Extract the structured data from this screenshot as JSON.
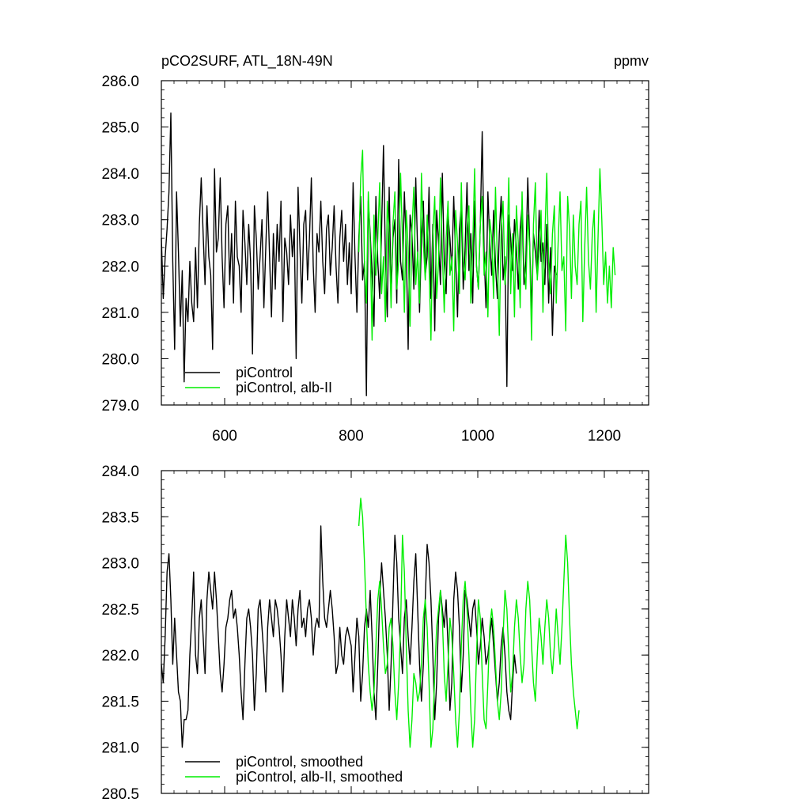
{
  "header": {
    "title": "pCO2SURF, ATL_18N-49N",
    "units": "ppmv"
  },
  "colors": {
    "series_black": "#000000",
    "series_green": "#00ee00"
  },
  "chart_data": [
    {
      "type": "line",
      "panel": "top",
      "xlim": [
        500,
        1270
      ],
      "ylim": [
        279.0,
        286.0
      ],
      "x_ticks": [
        600,
        800,
        1000,
        1200
      ],
      "x_tick_labels": [
        "600",
        "800",
        "1000",
        "1200"
      ],
      "y_ticks": [
        279.0,
        280.0,
        281.0,
        282.0,
        283.0,
        284.0,
        285.0,
        286.0
      ],
      "y_tick_labels": [
        "279.0",
        "280.0",
        "281.0",
        "282.0",
        "283.0",
        "284.0",
        "285.0",
        "286.0"
      ],
      "legend": "bottom-left",
      "grid": false,
      "series": [
        {
          "name": "piControl",
          "color": "#000000",
          "x_start": 500,
          "x_step": 3,
          "values": [
            282.6,
            281.3,
            282.2,
            282.8,
            283.6,
            285.3,
            282.1,
            280.2,
            283.6,
            282.3,
            280.7,
            281.9,
            279.5,
            281.3,
            280.8,
            282.1,
            281.2,
            280.8,
            282.4,
            281.1,
            282.9,
            283.9,
            282.7,
            281.6,
            283.3,
            282.2,
            281.8,
            280.2,
            284.1,
            282.3,
            282.6,
            283.9,
            282.2,
            281.1,
            282.9,
            283.3,
            281.6,
            282.7,
            281.2,
            283.4,
            282.2,
            282.0,
            281.0,
            283.2,
            282.5,
            281.6,
            282.9,
            282.1,
            280.1,
            283.3,
            282.6,
            281.5,
            282.2,
            283.0,
            281.1,
            282.4,
            283.6,
            282.2,
            280.9,
            282.7,
            281.5,
            282.9,
            282.1,
            283.4,
            280.8,
            282.6,
            282.3,
            281.6,
            283.1,
            282.2,
            282.8,
            280.0,
            283.7,
            282.4,
            281.2,
            282.9,
            283.2,
            281.7,
            282.6,
            283.9,
            282.0,
            281.0,
            282.7,
            282.3,
            283.4,
            282.1,
            281.4,
            282.8,
            283.1,
            281.8,
            282.4,
            283.3,
            282.0,
            281.2,
            282.6,
            283.2,
            282.1,
            282.9,
            281.6,
            282.5,
            281.4,
            283.8,
            282.2,
            281.0,
            282.6,
            283.5,
            281.7,
            282.1,
            279.2,
            283.4,
            282.7,
            281.8,
            280.7,
            283.5,
            282.1,
            281.3,
            282.8,
            284.6,
            282.2,
            280.9,
            283.7,
            281.4,
            282.6,
            283.0,
            281.2,
            284.3,
            282.1,
            281.7,
            283.6,
            282.4,
            280.2,
            283.1,
            282.7,
            281.5,
            283.9,
            282.3,
            281.0,
            282.6,
            283.4,
            281.8,
            282.2,
            283.7,
            281.3,
            282.9,
            280.6,
            283.2,
            282.5,
            281.6,
            284.0,
            282.1,
            281.4,
            283.1,
            282.6,
            281.9,
            283.5,
            282.2,
            280.9,
            282.8,
            283.3,
            281.5,
            282.4,
            283.8,
            281.9,
            282.7,
            281.2,
            283.4,
            282.0,
            281.5,
            282.9,
            284.9,
            282.3,
            281.1,
            283.6,
            282.5,
            281.8,
            283.2,
            282.0,
            281.3,
            282.7,
            283.5,
            281.7,
            282.2,
            279.4,
            283.1,
            282.6,
            281.9,
            283.0,
            282.4,
            281.5,
            282.8,
            283.3,
            281.6,
            282.1,
            283.9,
            282.5,
            281.0,
            282.7,
            282.3,
            281.8,
            283.2,
            282.1,
            282.5,
            281.6,
            282.9,
            281.2,
            282.4,
            280.5,
            282.0,
            281.8
          ]
        },
        {
          "name": "piControl, alb-II",
          "color": "#00ee00",
          "x_start": 812,
          "x_step": 3,
          "values": [
            282.3,
            283.9,
            284.5,
            282.0,
            281.2,
            283.6,
            282.5,
            280.4,
            283.1,
            281.8,
            282.6,
            283.8,
            281.4,
            282.2,
            280.8,
            283.4,
            282.7,
            281.1,
            282.9,
            283.6,
            281.5,
            282.1,
            284.0,
            282.6,
            281.0,
            283.2,
            282.4,
            280.7,
            282.8,
            283.7,
            281.6,
            282.3,
            281.2,
            284.0,
            282.5,
            281.7,
            283.1,
            282.0,
            280.4,
            282.7,
            283.5,
            281.3,
            282.1,
            283.9,
            282.3,
            281.0,
            282.6,
            283.4,
            281.8,
            282.2,
            280.6,
            283.2,
            282.5,
            281.4,
            283.8,
            282.1,
            281.7,
            282.8,
            283.3,
            281.2,
            282.4,
            284.1,
            282.0,
            281.5,
            282.9,
            283.5,
            281.8,
            282.3,
            280.9,
            283.0,
            282.6,
            281.3,
            283.7,
            282.1,
            280.5,
            282.8,
            283.4,
            281.6,
            282.2,
            283.9,
            281.4,
            282.7,
            280.9,
            283.3,
            282.5,
            281.1,
            283.6,
            282.0,
            281.5,
            283.1,
            282.4,
            280.4,
            282.9,
            283.8,
            281.7,
            282.3,
            283.2,
            281.0,
            282.6,
            284.0,
            282.1,
            281.4,
            282.7,
            283.3,
            281.2,
            282.5,
            283.6,
            281.9,
            282.2,
            280.6,
            283.5,
            282.8,
            281.3,
            283.1,
            282.0,
            281.6,
            282.9,
            283.4,
            280.8,
            282.4,
            283.7,
            282.1,
            281.5,
            282.7,
            283.2,
            281.0,
            282.6,
            284.1,
            283.0,
            281.6,
            282.3,
            281.2,
            282.0,
            281.1,
            282.4,
            281.8
          ]
        }
      ]
    },
    {
      "type": "line",
      "panel": "bottom",
      "xlim": [
        500,
        1270
      ],
      "ylim": [
        280.5,
        284.0
      ],
      "x_ticks": [
        600,
        800,
        1000,
        1200
      ],
      "y_ticks": [
        280.5,
        281.0,
        281.5,
        282.0,
        282.5,
        283.0,
        283.5,
        284.0
      ],
      "y_tick_labels": [
        "280.5",
        "281.0",
        "281.5",
        "282.0",
        "282.5",
        "283.0",
        "283.5",
        "284.0"
      ],
      "legend": "bottom-left",
      "grid": false,
      "series": [
        {
          "name": "piControl, smoothed",
          "color": "#000000",
          "x_start": 500,
          "x_step": 3,
          "values": [
            281.9,
            281.7,
            282.2,
            282.9,
            283.1,
            282.6,
            281.9,
            282.4,
            282.0,
            281.6,
            281.5,
            281.0,
            281.3,
            281.3,
            281.4,
            282.0,
            282.4,
            282.9,
            282.0,
            281.8,
            282.4,
            282.6,
            282.2,
            281.8,
            282.6,
            282.9,
            282.7,
            282.5,
            282.9,
            282.6,
            282.2,
            281.8,
            281.6,
            281.9,
            282.3,
            282.4,
            282.6,
            282.7,
            282.4,
            282.5,
            282.3,
            282.0,
            281.6,
            281.3,
            281.9,
            282.4,
            282.5,
            282.3,
            282.0,
            281.4,
            281.8,
            282.5,
            282.6,
            282.3,
            282.0,
            281.6,
            282.3,
            282.6,
            282.4,
            282.2,
            282.6,
            282.5,
            282.3,
            282.0,
            281.6,
            282.2,
            282.6,
            282.4,
            282.2,
            282.6,
            282.4,
            282.1,
            282.5,
            282.7,
            282.3,
            282.4,
            282.2,
            282.5,
            282.6,
            282.4,
            282.0,
            282.3,
            282.4,
            282.3,
            283.4,
            282.8,
            282.4,
            282.3,
            282.5,
            282.7,
            282.5,
            282.2,
            281.8,
            281.9,
            282.3,
            282.0,
            281.9,
            282.2,
            282.3,
            282.2,
            282.1,
            281.6,
            282.0,
            282.4,
            282.2,
            281.5,
            281.8,
            282.3,
            282.5,
            282.3,
            282.7,
            282.2,
            281.6,
            281.3,
            281.9,
            282.6,
            283.0,
            282.7,
            282.4,
            282.0,
            281.4,
            281.9,
            282.6,
            283.3,
            283.0,
            282.4,
            282.1,
            281.8,
            282.4,
            282.6,
            282.2,
            281.9,
            282.3,
            282.8,
            283.1,
            282.5,
            281.9,
            281.5,
            281.9,
            282.6,
            283.2,
            283.0,
            282.6,
            282.0,
            281.3,
            281.7,
            282.4,
            282.7,
            282.5,
            282.3,
            282.6,
            282.1,
            281.4,
            281.7,
            282.6,
            282.9,
            282.7,
            282.3,
            281.6,
            282.0,
            282.7,
            282.6,
            282.4,
            282.2,
            282.5,
            282.6,
            282.3,
            281.9,
            282.1,
            282.4,
            282.2,
            281.9,
            282.0,
            282.2,
            282.4,
            282.1,
            281.8,
            281.5,
            281.7,
            282.1,
            282.3,
            282.0,
            281.6,
            281.4,
            281.3,
            281.7,
            282.0,
            281.8
          ]
        },
        {
          "name": "piControl, alb-II, smoothed",
          "color": "#00ee00",
          "x_start": 812,
          "x_step": 3,
          "values": [
            283.4,
            283.7,
            283.5,
            283.0,
            282.4,
            281.9,
            281.6,
            281.4,
            281.6,
            282.1,
            282.6,
            282.8,
            282.5,
            282.1,
            281.8,
            281.9,
            282.3,
            282.4,
            282.1,
            281.6,
            281.3,
            281.7,
            282.3,
            283.3,
            282.9,
            282.1,
            281.4,
            281.0,
            281.3,
            281.8,
            281.7,
            281.5,
            281.6,
            281.9,
            282.4,
            282.6,
            282.3,
            281.7,
            281.0,
            281.2,
            281.8,
            282.3,
            282.5,
            282.7,
            282.4,
            281.8,
            281.5,
            281.9,
            282.4,
            282.2,
            281.8,
            281.3,
            281.0,
            281.4,
            282.1,
            282.6,
            282.8,
            282.5,
            282.0,
            281.4,
            281.0,
            281.3,
            282.0,
            282.6,
            282.4,
            281.8,
            281.3,
            281.2,
            281.7,
            282.3,
            282.5,
            282.3,
            281.9,
            281.5,
            281.3,
            281.6,
            282.2,
            282.7,
            282.5,
            282.0,
            281.6,
            281.8,
            282.3,
            282.6,
            282.4,
            282.0,
            281.7,
            281.9,
            282.5,
            282.8,
            282.6,
            282.1,
            281.7,
            281.5,
            282.0,
            282.4,
            282.2,
            281.9,
            282.3,
            282.6,
            282.4,
            282.0,
            281.8,
            282.1,
            282.5,
            282.2,
            281.9,
            282.3,
            282.8,
            283.3,
            283.0,
            282.4,
            281.9,
            281.6,
            281.4,
            281.2,
            281.4
          ]
        }
      ]
    }
  ]
}
